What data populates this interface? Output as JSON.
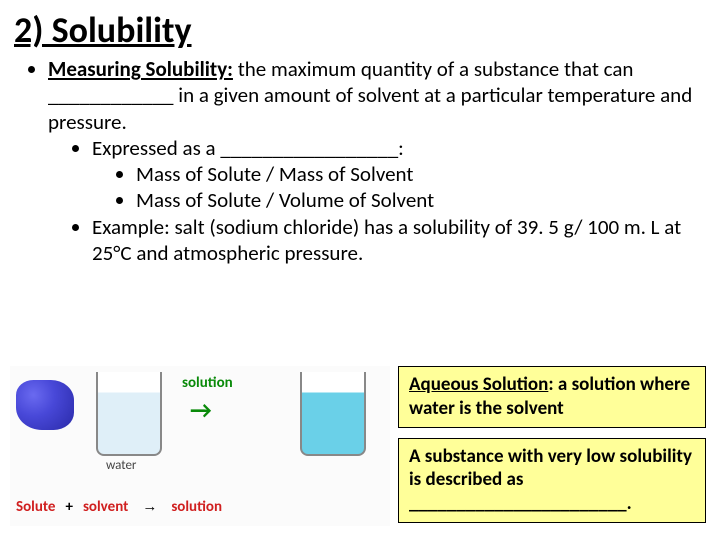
{
  "title": "2) Solubility",
  "main": {
    "heading_label": "Measuring Solubility:",
    "heading_rest": " the maximum quantity of a substance that can ____________ in a given amount of solvent at a particular temperature and pressure.",
    "expr_intro": "Expressed as a _________________:",
    "expr_a": "Mass of Solute / Mass of Solvent",
    "expr_b": "Mass of Solute / Volume of Solvent",
    "example": "Example: salt (sodium chloride) has a solubility of 39. 5 g/ 100 m. L at 25°C and atmospheric pressure."
  },
  "diagram": {
    "solute_label": "Solute",
    "plus": "+",
    "solvent_label": "solvent",
    "arrow": "→",
    "solution_label": "solution",
    "solution_green": "solution",
    "water_label": "water"
  },
  "box1": {
    "term": "Aqueous Solution",
    "rest": ": a solution where water is the solvent"
  },
  "box2": {
    "text": "A substance with very low solubility is described as _______________________."
  },
  "colors": {
    "highlight_bg": "#ffff99",
    "green": "#0a8a0a",
    "red": "#d02020"
  }
}
